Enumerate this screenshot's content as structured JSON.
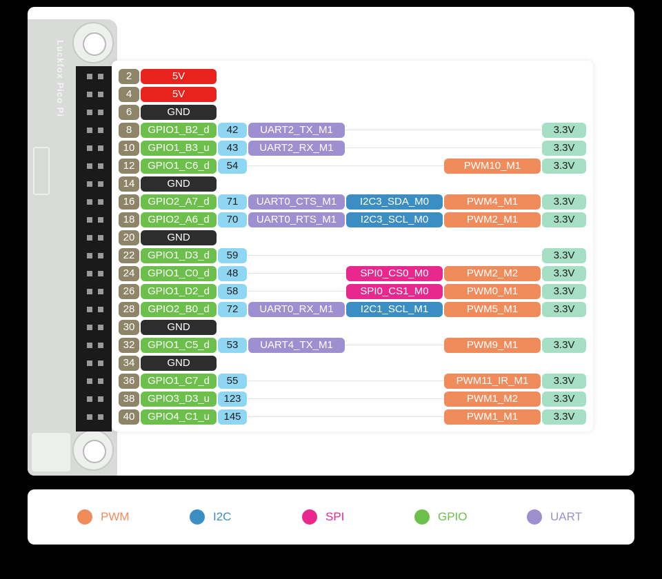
{
  "board": {
    "silkscreen": "Luckfox Pico Pi"
  },
  "colors": {
    "pwm": "#f08b5c",
    "i2c": "#3b8ec4",
    "spi": "#e8288d",
    "gpio": "#6dbf4b",
    "uart": "#9d8fd0",
    "power": "#e8221c",
    "gnd": "#2d2d2d",
    "pin": "#8e8467",
    "number": "#8fd6f2",
    "voltage": "#a6dfc3"
  },
  "pins": [
    {
      "pin": "2",
      "name": "5V",
      "kind": "power"
    },
    {
      "pin": "4",
      "name": "5V",
      "kind": "power"
    },
    {
      "pin": "6",
      "name": "GND",
      "kind": "gnd"
    },
    {
      "pin": "8",
      "name": "GPIO1_B2_d",
      "kind": "gpio",
      "num": "42",
      "uart": "UART2_TX_M1",
      "volt": "3.3V"
    },
    {
      "pin": "10",
      "name": "GPIO1_B3_u",
      "kind": "gpio",
      "num": "43",
      "uart": "UART2_RX_M1",
      "volt": "3.3V"
    },
    {
      "pin": "12",
      "name": "GPIO1_C6_d",
      "kind": "gpio",
      "num": "54",
      "pwm": "PWM10_M1",
      "volt": "3.3V"
    },
    {
      "pin": "14",
      "name": "GND",
      "kind": "gnd"
    },
    {
      "pin": "16",
      "name": "GPIO2_A7_d",
      "kind": "gpio",
      "num": "71",
      "uart": "UART0_CTS_M1",
      "i2c": "I2C3_SDA_M0",
      "pwm": "PWM4_M1",
      "volt": "3.3V"
    },
    {
      "pin": "18",
      "name": "GPIO2_A6_d",
      "kind": "gpio",
      "num": "70",
      "uart": "UART0_RTS_M1",
      "i2c": "I2C3_SCL_M0",
      "pwm": "PWM2_M1",
      "volt": "3.3V"
    },
    {
      "pin": "20",
      "name": "GND",
      "kind": "gnd"
    },
    {
      "pin": "22",
      "name": "GPIO1_D3_d",
      "kind": "gpio",
      "num": "59",
      "volt": "3.3V"
    },
    {
      "pin": "24",
      "name": "GPIO1_C0_d",
      "kind": "gpio",
      "num": "48",
      "spi": "SPI0_CS0_M0",
      "pwm": "PWM2_M2",
      "volt": "3.3V"
    },
    {
      "pin": "26",
      "name": "GPIO1_D2_d",
      "kind": "gpio",
      "num": "58",
      "spi": "SPI0_CS1_M0",
      "pwm": "PWM0_M1",
      "volt": "3.3V"
    },
    {
      "pin": "28",
      "name": "GPIO2_B0_d",
      "kind": "gpio",
      "num": "72",
      "uart": "UART0_RX_M1",
      "i2c": "I2C1_SCL_M1",
      "pwm": "PWM5_M1",
      "volt": "3.3V"
    },
    {
      "pin": "30",
      "name": "GND",
      "kind": "gnd"
    },
    {
      "pin": "32",
      "name": "GPIO1_C5_d",
      "kind": "gpio",
      "num": "53",
      "uart": "UART4_TX_M1",
      "pwm": "PWM9_M1",
      "volt": "3.3V"
    },
    {
      "pin": "34",
      "name": "GND",
      "kind": "gnd"
    },
    {
      "pin": "36",
      "name": "GPIO1_C7_d",
      "kind": "gpio",
      "num": "55",
      "pwm": "PWM11_IR_M1",
      "volt": "3.3V"
    },
    {
      "pin": "38",
      "name": "GPIO3_D3_u",
      "kind": "gpio",
      "num": "123",
      "pwm": "PWM1_M2",
      "volt": "3.3V"
    },
    {
      "pin": "40",
      "name": "GPIO4_C1_u",
      "kind": "gpio",
      "num": "145",
      "pwm": "PWM1_M1",
      "volt": "3.3V"
    }
  ],
  "legend": [
    {
      "label": "PWM",
      "color": "#f08b5c"
    },
    {
      "label": "I2C",
      "color": "#3b8ec4"
    },
    {
      "label": "SPI",
      "color": "#e8288d"
    },
    {
      "label": "GPIO",
      "color": "#6dbf4b"
    },
    {
      "label": "UART",
      "color": "#9d8fd0"
    }
  ]
}
